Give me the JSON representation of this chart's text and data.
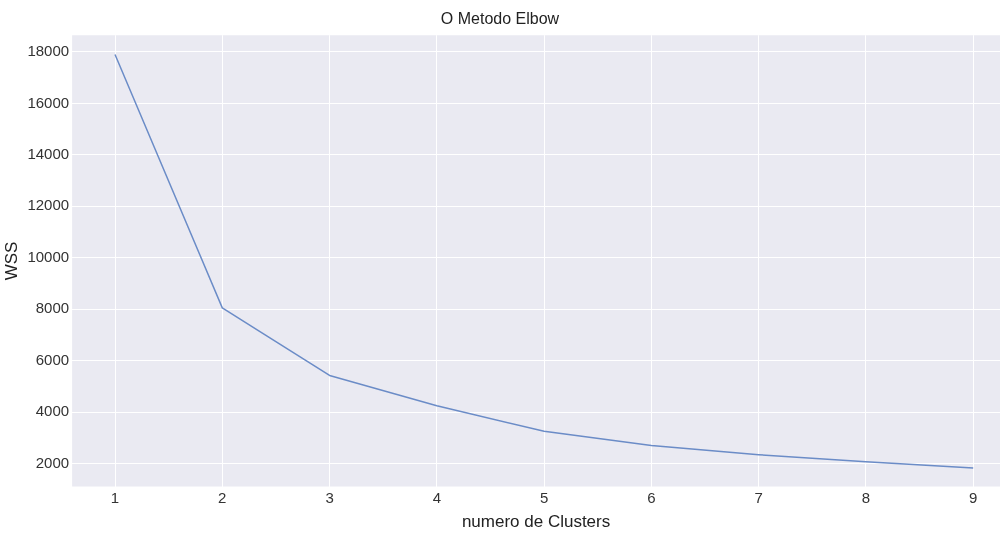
{
  "chart_data": {
    "type": "line",
    "title": "O Metodo Elbow",
    "xlabel": "numero de Clusters",
    "ylabel": "WSS",
    "x": [
      1,
      2,
      3,
      4,
      5,
      6,
      7,
      8,
      9
    ],
    "series": [
      {
        "color": "#6b8cc7",
        "values": [
          17900,
          8050,
          5420,
          4240,
          3250,
          2700,
          2340,
          2070,
          1820
        ]
      }
    ],
    "xlim": [
      0.6,
      9.25
    ],
    "xticks": [
      1,
      2,
      3,
      4,
      5,
      6,
      7,
      8,
      9
    ],
    "ylim": [
      1100,
      18650
    ],
    "yticks": [
      2000,
      4000,
      6000,
      8000,
      10000,
      12000,
      14000,
      16000,
      18000
    ],
    "grid": true,
    "legend": false,
    "marker": "none",
    "line_style": "solid"
  }
}
